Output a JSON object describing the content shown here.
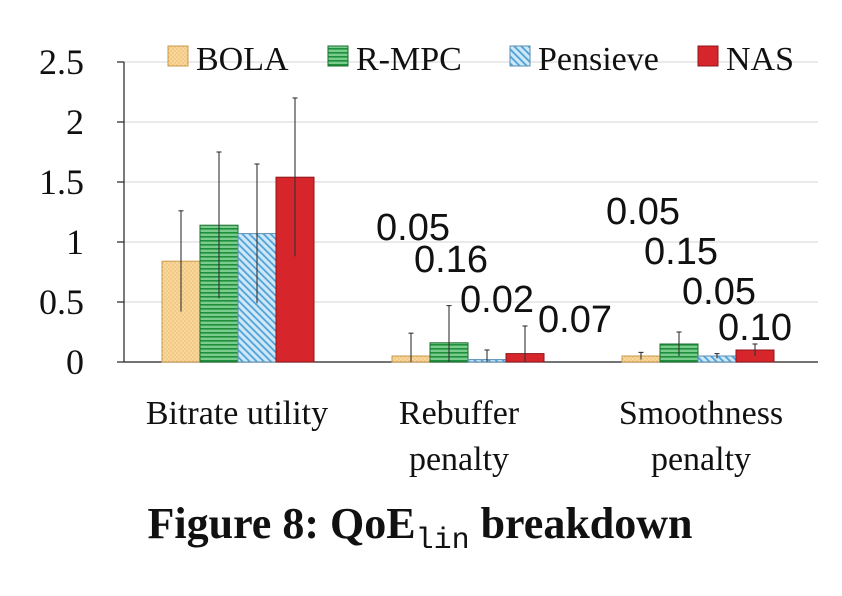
{
  "caption": {
    "prefix": "Figure 8: QoE",
    "subscript": "lin",
    "suffix": " breakdown"
  },
  "colors": {
    "BOLA": "#f9d79a",
    "R-MPC": "#4fb86a",
    "Pensieve": "#a9d4ee",
    "NAS": "#d7262b"
  },
  "chart_data": {
    "type": "bar",
    "categories": [
      [
        "Bitrate utility"
      ],
      [
        "Rebuffer",
        "penalty"
      ],
      [
        "Smoothness",
        "penalty"
      ]
    ],
    "series": [
      {
        "name": "BOLA",
        "values": [
          0.84,
          0.05,
          0.05
        ],
        "error": [
          0.42,
          0.19,
          0.03
        ]
      },
      {
        "name": "R-MPC",
        "values": [
          1.14,
          0.16,
          0.15
        ],
        "error": [
          0.61,
          0.31,
          0.1
        ]
      },
      {
        "name": "Pensieve",
        "values": [
          1.07,
          0.02,
          0.05
        ],
        "error": [
          0.58,
          0.08,
          0.02
        ]
      },
      {
        "name": "NAS",
        "values": [
          1.54,
          0.07,
          0.1
        ],
        "error": [
          0.66,
          0.23,
          0.05
        ]
      }
    ],
    "data_labels": [
      null,
      [
        "0.05",
        "0.16",
        "0.02",
        "0.07"
      ],
      [
        "0.05",
        "0.15",
        "0.05",
        "0.10"
      ]
    ],
    "ylim": [
      0,
      2.5
    ],
    "yticks": [
      "0",
      "0.5",
      "1",
      "1.5",
      "2",
      "2.5"
    ],
    "ytick_values": [
      0,
      0.5,
      1,
      1.5,
      2,
      2.5
    ],
    "grid": true,
    "legend_position": "top",
    "xlabel": "",
    "ylabel": ""
  }
}
